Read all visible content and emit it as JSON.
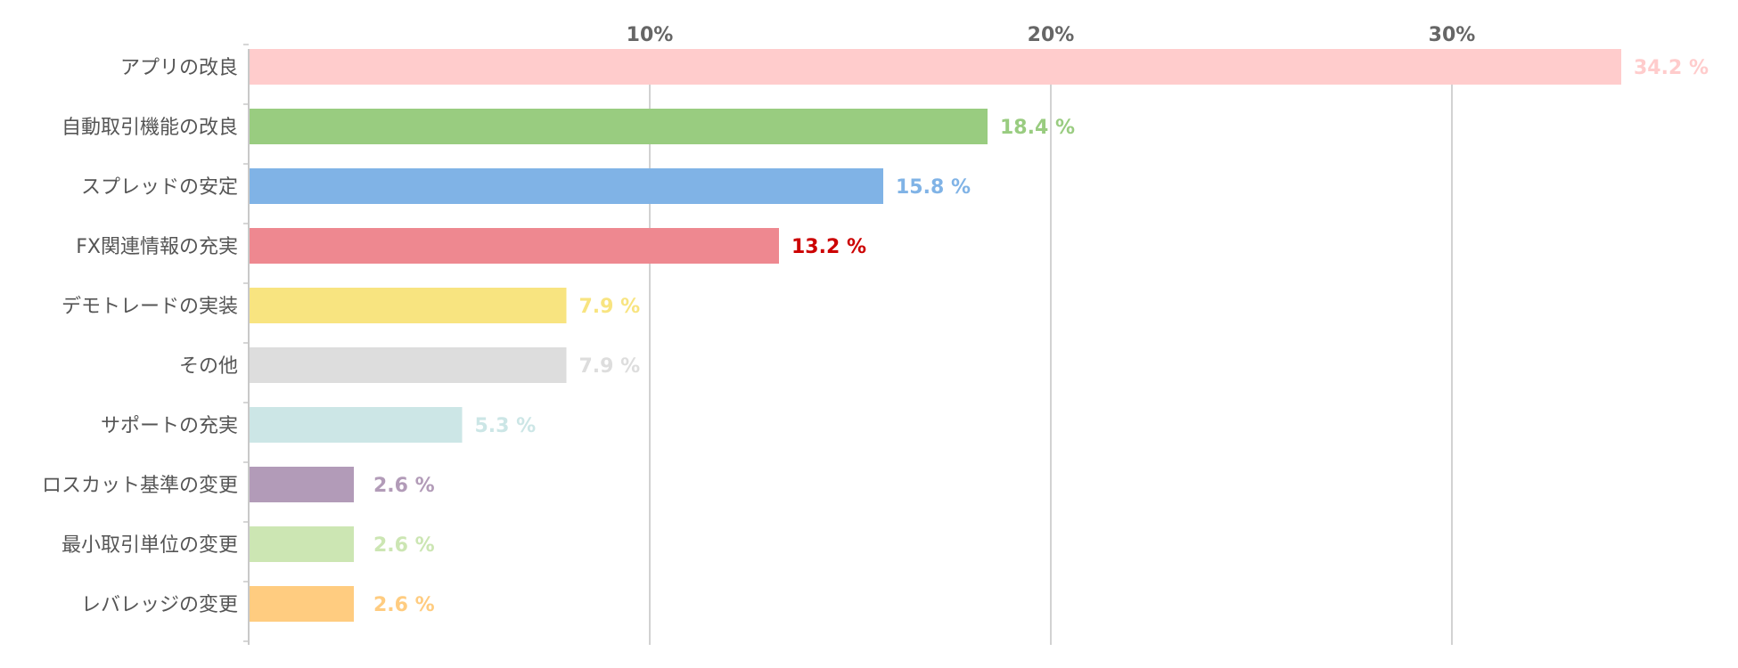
{
  "chart_data": {
    "type": "bar",
    "orientation": "horizontal",
    "categories": [
      "アプリの改良",
      "自動取引機能の改良",
      "スプレッドの安定",
      "FX関連情報の充実",
      "デモトレードの実装",
      "その他",
      "サポートの充実",
      "ロスカット基準の変更",
      "最小取引単位の変更",
      "レバレッジの変更"
    ],
    "values": [
      34.2,
      18.4,
      15.8,
      13.2,
      7.9,
      7.9,
      5.3,
      2.6,
      2.6,
      2.6
    ],
    "value_labels": [
      "34.2 %",
      "18.4 %",
      "15.8 %",
      "13.2 %",
      "7.9 %",
      "7.9 %",
      "5.3 %",
      "2.6 %",
      "2.6 %",
      "2.6 %"
    ],
    "colors": [
      "#ffcccc",
      "#99cc80",
      "#80b3e6",
      "#ee8890",
      "#f8e480",
      "#dddddd",
      "#cce6e6",
      "#b29bb8",
      "#cce6b3",
      "#ffcc80"
    ],
    "label_colors": [
      "#ffcccc",
      "#99cc80",
      "#80b3e6",
      "#cc0000",
      "#f8e480",
      "#dddddd",
      "#cce6e6",
      "#b29bb8",
      "#cce6b3",
      "#ffcc80"
    ],
    "x_ticks": [
      10,
      20,
      30
    ],
    "x_tick_labels": [
      "10%",
      "20%",
      "30%"
    ],
    "xlim": [
      0,
      37
    ],
    "x_axis_position": "top",
    "grid": true,
    "legend": false
  }
}
